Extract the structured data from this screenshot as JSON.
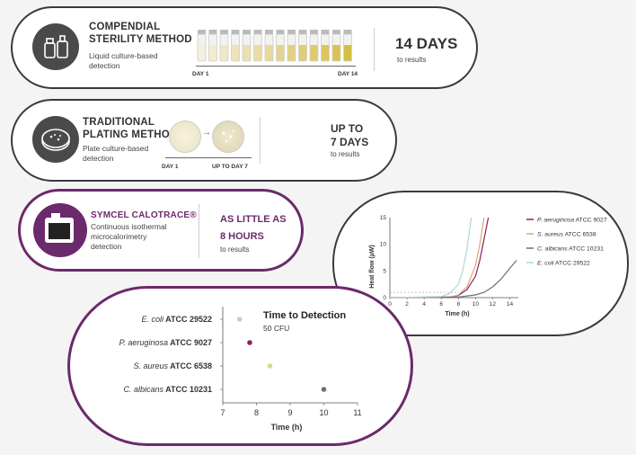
{
  "panels": {
    "compendial": {
      "title": "COMPENDIAL\nSTERILITY METHOD",
      "subtitle": "Liquid culture-based\ndetection",
      "day_start": "DAY 1",
      "day_end": "DAY 14",
      "result": "14 DAYS",
      "result_sub": "to results",
      "icon": "vial-bottle-icon"
    },
    "plating": {
      "title": "TRADITIONAL\nPLATING METHOD",
      "subtitle": "Plate culture-based\ndetection",
      "day_start": "DAY 1",
      "day_end": "UP TO DAY 7",
      "result": "UP TO\n7 DAYS",
      "result_sub": "to results",
      "icon": "petri-dish-icon"
    },
    "calotrace": {
      "title": "SYMCEL CALOTRACE®",
      "subtitle": "Continuous isothermal\nmicrocalorimetry\ndetection",
      "result": "AS LITTLE AS\n8 HOURS",
      "result_sub": "to results",
      "icon": "instrument-icon"
    }
  },
  "colors": {
    "dark": "#3a3a3a",
    "purple": "#6b2a6b",
    "pink": "#c2185b",
    "yellow": "#d4c86a",
    "grey": "#6e6e7a",
    "lightblue": "#9fd3d6"
  },
  "chart_data": [
    {
      "type": "line",
      "xlabel": "Time (h)",
      "ylabel": "Heat flow (µW)",
      "xlim": [
        0,
        15
      ],
      "ylim": [
        0,
        15
      ],
      "x_ticks": [
        "0",
        "2",
        "4",
        "6",
        "8",
        "10",
        "12",
        "14"
      ],
      "y_ticks": [
        "0",
        "5",
        "10",
        "15"
      ],
      "grid": false,
      "legend_position": "right",
      "series": [
        {
          "name_italic": "P. aeruginosa",
          "name_rest": " ATCC 9027",
          "color": "#8b1f5e",
          "x": [
            0,
            7,
            8,
            9,
            10,
            10.5,
            11,
            11.5
          ],
          "y": [
            0,
            0.1,
            0.4,
            1.5,
            4,
            7,
            11,
            15
          ]
        },
        {
          "name_italic": "S. aureus",
          "name_rest": " ATCC 6538",
          "color": "#d9a87a",
          "x": [
            0,
            7,
            8,
            9,
            10,
            10.5,
            11
          ],
          "y": [
            0,
            0.1,
            0.5,
            2,
            6,
            10,
            15
          ]
        },
        {
          "name_italic": "C. albicans",
          "name_rest": " ATCC 10231",
          "color": "#6e6e7a",
          "x": [
            0,
            8,
            10,
            11,
            12,
            13,
            14,
            14.8
          ],
          "y": [
            0,
            0.1,
            0.5,
            1,
            2,
            3.5,
            5.5,
            7
          ]
        },
        {
          "name_italic": "E. coli",
          "name_rest": " ATCC 29522",
          "color": "#a9d9dd",
          "x": [
            0,
            6,
            7,
            8,
            8.5,
            9,
            9.5
          ],
          "y": [
            0,
            0.2,
            0.8,
            2.5,
            5,
            9,
            15
          ]
        }
      ]
    },
    {
      "type": "scatter",
      "title": "Time to Detection",
      "subtitle": "50 CFU",
      "xlabel": "Time (h)",
      "xlim": [
        7,
        11
      ],
      "x_ticks": [
        "7",
        "8",
        "9",
        "10",
        "11"
      ],
      "categories": [
        {
          "italic": "E. coli",
          "bold": " ATCC 29522",
          "value": 7.5,
          "color": "#a9d9dd"
        },
        {
          "italic": "P. aeruginosa",
          "bold": " ATCC 9027",
          "value": 7.8,
          "color": "#8b1f5e"
        },
        {
          "italic": "S. aureus",
          "bold": " ATCC 6538",
          "value": 8.4,
          "color": "#d4dc8a"
        },
        {
          "italic": "C. albicans",
          "bold": " ATCC 10231",
          "value": 10,
          "color": "#6e6e7a"
        }
      ]
    }
  ]
}
